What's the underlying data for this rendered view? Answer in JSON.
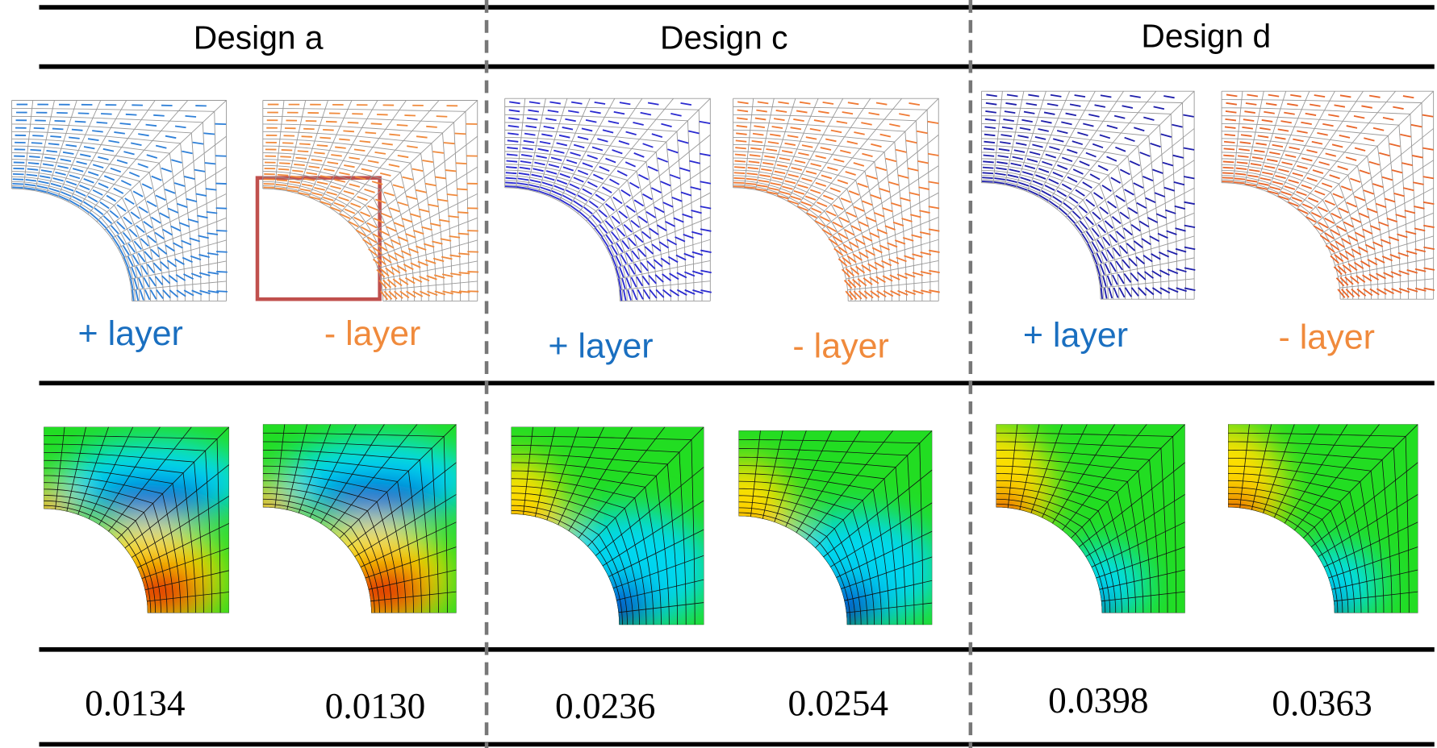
{
  "columns": [
    {
      "title": "Design a",
      "panels": [
        {
          "layer": "+ layer",
          "value": "0.0134"
        },
        {
          "layer": "- layer",
          "value": "0.0130"
        }
      ]
    },
    {
      "title": "Design c",
      "panels": [
        {
          "layer": "+ layer",
          "value": "0.0236"
        },
        {
          "layer": "- layer",
          "value": "0.0254"
        }
      ]
    },
    {
      "title": "Design d",
      "panels": [
        {
          "layer": "+ layer",
          "value": "0.0398"
        },
        {
          "layer": "- layer",
          "value": "0.0363"
        }
      ]
    }
  ]
}
